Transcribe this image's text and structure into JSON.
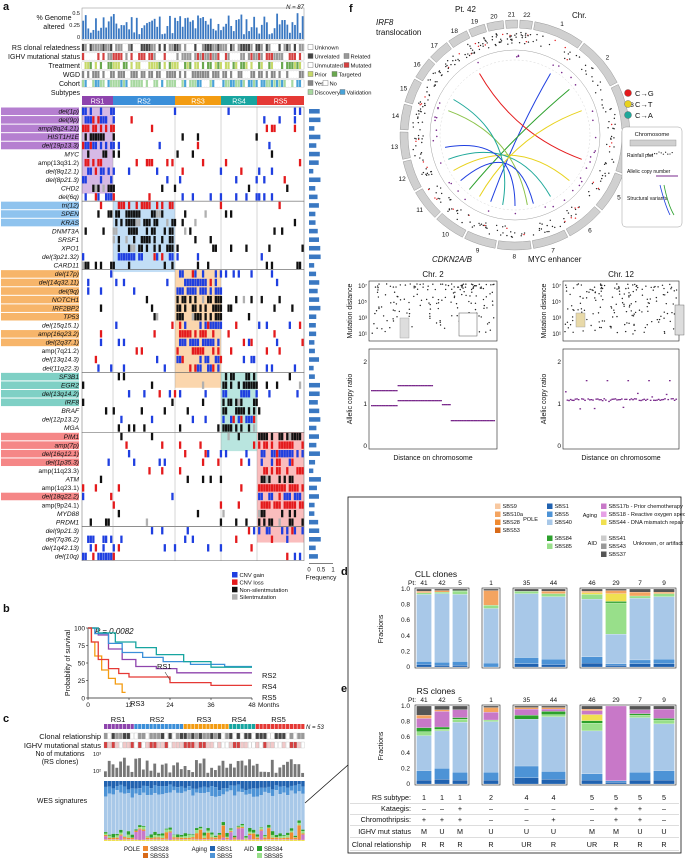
{
  "panels": {
    "a": "a",
    "b": "b",
    "c": "c",
    "d": "d",
    "e": "e",
    "f": "f"
  },
  "a": {
    "n_label": "N = 87",
    "ga_label": [
      "% Genome",
      "altered"
    ],
    "ga_ticks": [
      "0.5",
      "0.25",
      "0"
    ],
    "tracks": [
      "RS clonal relatedness",
      "IGHV mutational status",
      "Treatment",
      "WGD",
      "Cohort",
      "Subtypes"
    ],
    "legend": {
      "unknown": "Unknown",
      "unrelated": "Unrelated",
      "related": "Related",
      "unmutated": "Unmutated",
      "mutated": "Mutated",
      "prior": "Prior",
      "targeted": "Targeted",
      "yes": "Yes",
      "no": "No",
      "discovery": "Discovery",
      "validation": "Validation"
    },
    "subtypes": [
      {
        "name": "RS1",
        "color": "#8e44ad"
      },
      {
        "name": "RS2",
        "color": "#3b8fd9"
      },
      {
        "name": "RS3",
        "color": "#f39c12"
      },
      {
        "name": "RS4",
        "color": "#17a5a0"
      },
      {
        "name": "RS5",
        "color": "#e53935"
      }
    ],
    "genes": [
      {
        "t": "del(1p)",
        "hl": "#b57fd0",
        "it": true
      },
      {
        "t": "del(9p)",
        "hl": "#b57fd0",
        "it": true
      },
      {
        "t": "amp(8q24.21)",
        "hl": "#b57fd0",
        "it": true
      },
      {
        "t": "HIST1H1E",
        "hl": "#b57fd0",
        "it": true
      },
      {
        "t": "del(19p13.3)",
        "hl": "#b57fd0",
        "it": true
      },
      {
        "t": "MYC",
        "hl": "",
        "it": true
      },
      {
        "t": "amp(13q31.2)",
        "hl": "",
        "it": false
      },
      {
        "t": "del(8q12.1)",
        "hl": "",
        "it": true
      },
      {
        "t": "del(8p21.3)",
        "hl": "",
        "it": true
      },
      {
        "t": "CHD2",
        "hl": "",
        "it": true
      },
      {
        "t": "del(6q)",
        "hl": "",
        "it": true
      },
      {
        "t": "tri(12)",
        "hl": "#8fc3ee",
        "it": true
      },
      {
        "t": "SPEN",
        "hl": "#8fc3ee",
        "it": true
      },
      {
        "t": "KRAS",
        "hl": "#8fc3ee",
        "it": true
      },
      {
        "t": "DNMT3A",
        "hl": "",
        "it": true
      },
      {
        "t": "SRSF1",
        "hl": "",
        "it": true
      },
      {
        "t": "XPO1",
        "hl": "",
        "it": true
      },
      {
        "t": "del(3p21.32)",
        "hl": "",
        "it": true
      },
      {
        "t": "CARD11",
        "hl": "",
        "it": true
      },
      {
        "t": "del(17p)",
        "hl": "#f7b56a",
        "it": true
      },
      {
        "t": "del(14q32.11)",
        "hl": "#f7b56a",
        "it": true
      },
      {
        "t": "del(9q)",
        "hl": "#f7b56a",
        "it": true
      },
      {
        "t": "NOTCH1",
        "hl": "#f7b56a",
        "it": true
      },
      {
        "t": "IRF2BP2",
        "hl": "#f7b56a",
        "it": true
      },
      {
        "t": "TP53",
        "hl": "#f7b56a",
        "it": true
      },
      {
        "t": "del(15q15.1)",
        "hl": "",
        "it": true
      },
      {
        "t": "amp(16q23.2)",
        "hl": "#f7b56a",
        "it": true
      },
      {
        "t": "del(2q37.1)",
        "hl": "#f7b56a",
        "it": true
      },
      {
        "t": "amp(7q21.2)",
        "hl": "",
        "it": false
      },
      {
        "t": "del(13q14.3)",
        "hl": "",
        "it": true
      },
      {
        "t": "del(11q22.3)",
        "hl": "",
        "it": true
      },
      {
        "t": "SF3B1",
        "hl": "#7fd0c5",
        "it": true
      },
      {
        "t": "EGR2",
        "hl": "#7fd0c5",
        "it": true
      },
      {
        "t": "del(13q14.2)",
        "hl": "#7fd0c5",
        "it": true
      },
      {
        "t": "IRF8",
        "hl": "#7fd0c5",
        "it": true
      },
      {
        "t": "BRAF",
        "hl": "",
        "it": true
      },
      {
        "t": "del(12p13.2)",
        "hl": "",
        "it": true
      },
      {
        "t": "MGA",
        "hl": "",
        "it": true
      },
      {
        "t": "PIM1",
        "hl": "#f58787",
        "it": true
      },
      {
        "t": "amp(7p)",
        "hl": "#f58787",
        "it": true
      },
      {
        "t": "del(16q12.1)",
        "hl": "#f58787",
        "it": true
      },
      {
        "t": "del(1p35.3)",
        "hl": "#f58787",
        "it": true
      },
      {
        "t": "amp(11q23.3)",
        "hl": "",
        "it": false
      },
      {
        "t": "ATM",
        "hl": "",
        "it": true
      },
      {
        "t": "amp(1q23.1)",
        "hl": "",
        "it": false
      },
      {
        "t": "del(18q22.2)",
        "hl": "#f58787",
        "it": true
      },
      {
        "t": "amp(9p24.1)",
        "hl": "",
        "it": false
      },
      {
        "t": "MYD88",
        "hl": "",
        "it": true
      },
      {
        "t": "PRDM1",
        "hl": "",
        "it": true
      },
      {
        "t": "del(9p21.3)",
        "hl": "",
        "it": true
      },
      {
        "t": "del(7q36.2)",
        "hl": "",
        "it": true
      },
      {
        "t": "del(1q42.13)",
        "hl": "",
        "it": true
      },
      {
        "t": "del(10q)",
        "hl": "",
        "it": true
      }
    ],
    "alt_legend": [
      {
        "label": "CNV gain",
        "color": "#1f3fe0"
      },
      {
        "label": "CNV loss",
        "color": "#e41a1c"
      },
      {
        "label": "Non-silentmutation",
        "color": "#111111"
      },
      {
        "label": "Silentmutation",
        "color": "#b0b0b0"
      }
    ],
    "freq_label": "Frequency",
    "freq_ticks": [
      "0",
      "0.5",
      "1"
    ]
  },
  "b": {
    "pvalue": "P = 0.0082",
    "ylabel": "Probability of survival",
    "yticks": [
      "100",
      "75",
      "50",
      "25",
      "0"
    ],
    "xticks": [
      "0",
      "12",
      "24",
      "36",
      "48"
    ],
    "xunit": "Months",
    "curve_labels": [
      "RS1",
      "RS2",
      "RS3",
      "RS4",
      "RS5"
    ]
  },
  "c": {
    "n_label": "N = 53",
    "groups": [
      "RS1",
      "RS2",
      "RS3",
      "RS4",
      "RS5"
    ],
    "rows": [
      "Clonal relationship",
      "IGHV mutational status"
    ],
    "mut_label": [
      "No of mutations",
      "(RS clones)"
    ],
    "mut_ticks": [
      "10³",
      "10²"
    ],
    "sig_label": "WES signatures",
    "legend_pole": "POLE",
    "legend_aging": "Aging",
    "legend_aid": "AID",
    "legend_items": [
      "SBS28",
      "SBS53",
      "SBS1",
      "SBS5",
      "SBS84",
      "SBS85"
    ]
  },
  "sig_legend": {
    "pole_group": "POLE",
    "aging_group": "Aging",
    "aid_group": "AID",
    "unknown_group": "Unknown, or artifact",
    "items": [
      {
        "name": "SBS9",
        "color": "#f8c8a0"
      },
      {
        "name": "SBS10a",
        "color": "#f4a460"
      },
      {
        "name": "SBS28",
        "color": "#f08a30"
      },
      {
        "name": "SBS53",
        "color": "#d86a18"
      },
      {
        "name": "SBS1",
        "color": "#2062b0"
      },
      {
        "name": "SBS5",
        "color": "#4d93d6"
      },
      {
        "name": "SBS40",
        "color": "#a8c8e8"
      },
      {
        "name": "SBS84",
        "color": "#2ca02c"
      },
      {
        "name": "SBS85",
        "color": "#98df8a"
      },
      {
        "name": "SBS17b - Prior chemotherapy",
        "color": "#c878c8"
      },
      {
        "name": "SBS18 - Reactive oxygen species",
        "color": "#e6a0e6"
      },
      {
        "name": "SBS44 - DNA mismatch repair",
        "color": "#f0e050"
      },
      {
        "name": "SBS41",
        "color": "#cccccc"
      },
      {
        "name": "SBS43",
        "color": "#999999"
      },
      {
        "name": "SBS37",
        "color": "#555555"
      }
    ]
  },
  "d": {
    "title": "CLL clones",
    "pt_prefix": "Pt:",
    "pts": [
      "41",
      "42",
      "5",
      "1",
      "35",
      "44",
      "46",
      "29",
      "7",
      "9"
    ],
    "ylabel": "Fractions",
    "yticks": [
      "1.0",
      "0.8",
      "0.6",
      "0.4",
      "0.2",
      "0"
    ]
  },
  "e": {
    "title": "RS clones",
    "pt_prefix": "Pt:",
    "pts": [
      "41",
      "42",
      "5",
      "1",
      "35",
      "44",
      "46",
      "29",
      "7",
      "9"
    ],
    "ylabel": "Fractions",
    "yticks": [
      "1.0",
      "0.8",
      "0.6",
      "0.4",
      "0.2",
      "0"
    ],
    "table": [
      {
        "label": "RS subtype:",
        "vals": [
          "1",
          "1",
          "1",
          "2",
          "4",
          "4",
          "5",
          "5",
          "5",
          "5"
        ]
      },
      {
        "label": "Kataegis:",
        "vals": [
          "–",
          "–",
          "+",
          "–",
          "–",
          "–",
          "–",
          "+",
          "+",
          "–"
        ]
      },
      {
        "label": "Chromothripsis:",
        "vals": [
          "+",
          "+",
          "+",
          "–",
          "–",
          "+",
          "–",
          "+",
          "+",
          "–"
        ]
      },
      {
        "label": "IGHV mut status",
        "vals": [
          "M",
          "U",
          "M",
          "U",
          "U",
          "U",
          "M",
          "M",
          "U",
          "U"
        ]
      },
      {
        "label": "Clonal relationship",
        "vals": [
          "R",
          "R",
          "R",
          "R",
          "UR",
          "R",
          "UR",
          "R",
          "R",
          "R"
        ]
      }
    ]
  },
  "f": {
    "pt_label": "Pt. 42",
    "chr_label": "Chr.",
    "translocation": [
      "IRF8",
      "translocation"
    ],
    "cdkn": "CDKN2A/B",
    "myc": "MYC enhancer",
    "chroms": [
      "1",
      "2",
      "3",
      "4",
      "5",
      "6",
      "7",
      "8",
      "9",
      "10",
      "11",
      "12",
      "13",
      "14",
      "15",
      "16",
      "17",
      "18",
      "19",
      "20",
      "21",
      "22"
    ],
    "legend": [
      {
        "label": "C→G",
        "color": "#e41a1c"
      },
      {
        "label": "C→T",
        "color": "#e8d21d"
      },
      {
        "label": "C→A",
        "color": "#1fa89a"
      }
    ],
    "key": [
      "Chromosome",
      "Rainfall plot",
      "Allelic copy number",
      "Structural variants"
    ],
    "chr2": "Chr. 2",
    "chr12": "Chr. 12",
    "mut_ylabel": "Mutation distance",
    "log_ticks": [
      "10⁷",
      "10⁵",
      "10³",
      "10¹"
    ],
    "acr_ylabel": "Allelic copy ratio",
    "acr_ticks": [
      "2",
      "1",
      "0"
    ],
    "xlabel": "Distance on chromosome"
  },
  "colors": {
    "gain": "#1f3fe0",
    "loss": "#e41a1c",
    "mut": "#111111",
    "silent": "#b0b0b0",
    "bar": "#3a78c2",
    "purple": "#7a2a8c"
  }
}
